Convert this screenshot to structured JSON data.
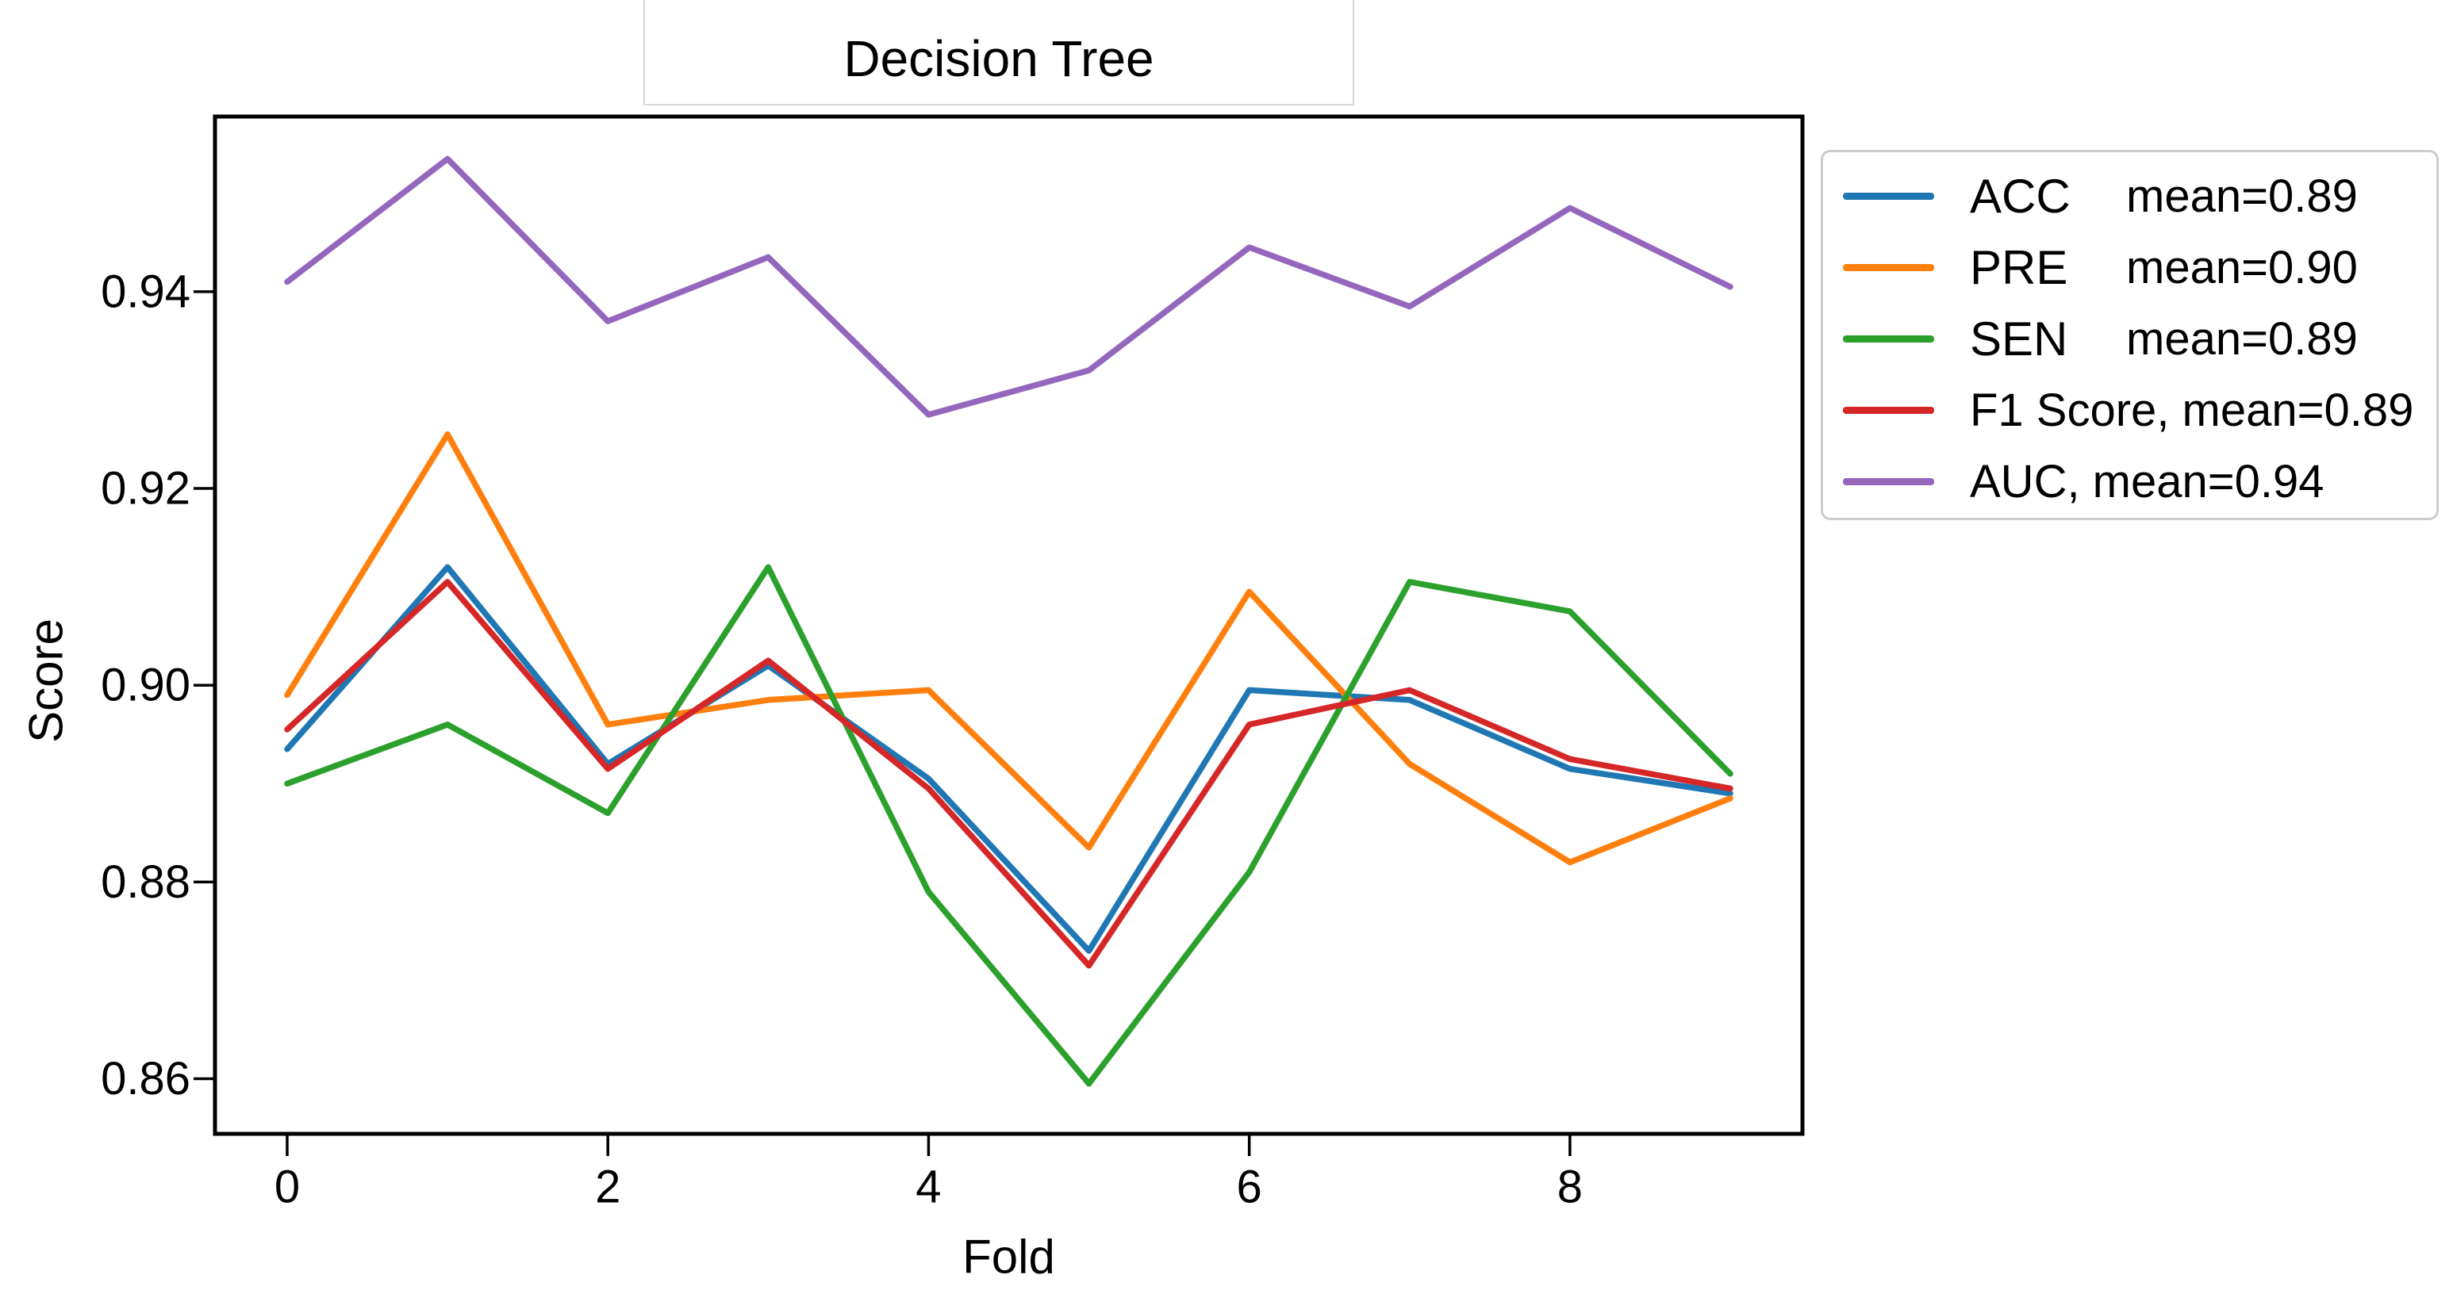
{
  "title": {
    "text": "Decision Tree"
  },
  "axes": {
    "x_label": "Fold",
    "y_label": "Score"
  },
  "chart_data": {
    "type": "line",
    "title": "Decision Tree",
    "xlabel": "Fold",
    "ylabel": "Score",
    "x": [
      0,
      1,
      2,
      3,
      4,
      5,
      6,
      7,
      8,
      9
    ],
    "xtick_labels": [
      "0",
      "2",
      "4",
      "6",
      "8"
    ],
    "xtick_values": [
      0,
      2,
      4,
      6,
      8
    ],
    "ytick_labels": [
      "0.86",
      "0.88",
      "0.90",
      "0.92",
      "0.94"
    ],
    "ytick_values": [
      0.86,
      0.88,
      0.9,
      0.92,
      0.94
    ],
    "xlim": [
      -0.45,
      9.45
    ],
    "ylim": [
      0.8544,
      0.9578
    ],
    "grid": false,
    "legend_position": "outside-upper-right",
    "series": [
      {
        "name": "ACC",
        "color": "#1f77b4",
        "legend": {
          "label": "ACC",
          "mean": "mean=0.89",
          "layout": "columns"
        },
        "values": [
          0.8935,
          0.912,
          0.892,
          0.902,
          0.8905,
          0.873,
          0.8995,
          0.8985,
          0.8915,
          0.889
        ]
      },
      {
        "name": "PRE",
        "color": "#ff7f0e",
        "legend": {
          "label": "PRE",
          "mean": "mean=0.90",
          "layout": "columns"
        },
        "values": [
          0.899,
          0.9255,
          0.896,
          0.8985,
          0.8995,
          0.8835,
          0.9095,
          0.892,
          0.882,
          0.8885
        ]
      },
      {
        "name": "SEN",
        "color": "#2ca02c",
        "legend": {
          "label": "SEN",
          "mean": "mean=0.89",
          "layout": "columns"
        },
        "values": [
          0.89,
          0.896,
          0.887,
          0.912,
          0.879,
          0.8595,
          0.881,
          0.9105,
          0.9075,
          0.891
        ]
      },
      {
        "name": "F1 Score",
        "color": "#d62728",
        "legend": {
          "label": "F1 Score, mean=0.89",
          "mean": null,
          "layout": "inline"
        },
        "values": [
          0.8955,
          0.9105,
          0.8915,
          0.9025,
          0.8895,
          0.8715,
          0.896,
          0.8995,
          0.8925,
          0.8895
        ]
      },
      {
        "name": "AUC",
        "color": "#9467bd",
        "legend": {
          "label": "AUC, mean=0.94",
          "mean": null,
          "layout": "inline"
        },
        "values": [
          0.941,
          0.9535,
          0.937,
          0.9435,
          0.9275,
          0.932,
          0.9445,
          0.9385,
          0.9485,
          0.9405
        ]
      }
    ]
  }
}
